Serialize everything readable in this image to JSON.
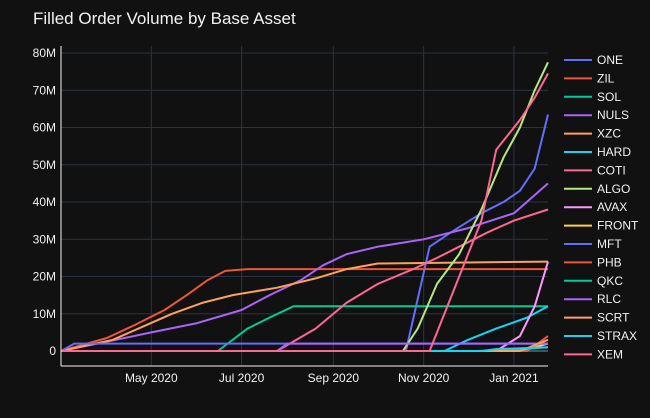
{
  "chart_data": {
    "type": "line",
    "title": "Filled Order Volume by Base Asset",
    "xlabel": "",
    "ylabel": "",
    "x_ticks": [
      "May 2020",
      "Jul 2020",
      "Sep 2020",
      "Nov 2020",
      "Jan 2021"
    ],
    "y_ticks": [
      "0",
      "10M",
      "20M",
      "30M",
      "40M",
      "50M",
      "60M",
      "70M",
      "80M"
    ],
    "xlim": [
      "2020-03-01",
      "2021-01-24"
    ],
    "ylim": [
      0,
      82000000
    ],
    "grid": true,
    "legend_position": "right",
    "series": [
      {
        "name": "ONE",
        "color": "#636efa",
        "points": [
          [
            "2020-03-01",
            0
          ],
          [
            "2020-10-20",
            0
          ],
          [
            "2020-11-05",
            28000000
          ],
          [
            "2020-11-20",
            32000000
          ],
          [
            "2020-12-10",
            37000000
          ],
          [
            "2020-12-25",
            40000000
          ],
          [
            "2021-01-05",
            43000000
          ],
          [
            "2021-01-15",
            49000000
          ],
          [
            "2021-01-24",
            63500000
          ]
        ]
      },
      {
        "name": "ZIL",
        "color": "#ef553b",
        "points": [
          [
            "2020-03-01",
            0
          ],
          [
            "2020-04-01",
            3500000
          ],
          [
            "2020-04-20",
            7000000
          ],
          [
            "2020-05-10",
            11000000
          ],
          [
            "2020-05-25",
            15000000
          ],
          [
            "2020-06-08",
            19000000
          ],
          [
            "2020-06-20",
            21500000
          ],
          [
            "2020-07-05",
            22000000
          ],
          [
            "2021-01-24",
            22000000
          ]
        ]
      },
      {
        "name": "SOL",
        "color": "#00cc96",
        "points": [
          [
            "2020-03-01",
            0
          ],
          [
            "2020-06-15",
            0
          ],
          [
            "2020-07-05",
            6000000
          ],
          [
            "2020-07-20",
            9000000
          ],
          [
            "2020-08-05",
            12000000
          ],
          [
            "2021-01-24",
            12000000
          ]
        ]
      },
      {
        "name": "NULS",
        "color": "#ab63fa",
        "points": [
          [
            "2020-03-01",
            0
          ],
          [
            "2020-04-01",
            2500000
          ],
          [
            "2020-05-01",
            5000000
          ],
          [
            "2020-06-01",
            7500000
          ],
          [
            "2020-07-01",
            11000000
          ],
          [
            "2020-07-20",
            15000000
          ],
          [
            "2020-08-10",
            19000000
          ],
          [
            "2020-08-25",
            23000000
          ],
          [
            "2020-09-10",
            26000000
          ],
          [
            "2020-10-01",
            28000000
          ],
          [
            "2020-11-01",
            30000000
          ],
          [
            "2020-12-01",
            33000000
          ],
          [
            "2021-01-01",
            37000000
          ],
          [
            "2021-01-24",
            45000000
          ]
        ]
      },
      {
        "name": "XZC",
        "color": "#ffa15a",
        "points": [
          [
            "2020-03-01",
            0
          ],
          [
            "2020-04-05",
            3000000
          ],
          [
            "2020-04-25",
            6500000
          ],
          [
            "2020-05-15",
            10000000
          ],
          [
            "2020-06-05",
            13000000
          ],
          [
            "2020-06-25",
            15000000
          ],
          [
            "2020-07-25",
            17000000
          ],
          [
            "2020-08-20",
            19500000
          ],
          [
            "2020-09-10",
            22000000
          ],
          [
            "2020-10-01",
            23500000
          ],
          [
            "2021-01-24",
            24000000
          ]
        ]
      },
      {
        "name": "HARD",
        "color": "#19d3f3",
        "points": [
          [
            "2020-03-01",
            0
          ],
          [
            "2020-11-15",
            0
          ],
          [
            "2020-12-01",
            3000000
          ],
          [
            "2020-12-20",
            6000000
          ],
          [
            "2021-01-10",
            9000000
          ],
          [
            "2021-01-24",
            12000000
          ]
        ]
      },
      {
        "name": "COTI",
        "color": "#ff6692",
        "points": [
          [
            "2020-03-01",
            0
          ],
          [
            "2020-07-25",
            0
          ],
          [
            "2020-08-20",
            6000000
          ],
          [
            "2020-09-10",
            13000000
          ],
          [
            "2020-10-01",
            18000000
          ],
          [
            "2020-10-25",
            22000000
          ],
          [
            "2020-11-10",
            25000000
          ],
          [
            "2020-11-25",
            28000000
          ],
          [
            "2020-12-15",
            32000000
          ],
          [
            "2021-01-01",
            35000000
          ],
          [
            "2021-01-24",
            38000000
          ]
        ]
      },
      {
        "name": "ALGO",
        "color": "#b6e880",
        "points": [
          [
            "2020-03-01",
            0
          ],
          [
            "2020-10-18",
            0
          ],
          [
            "2020-10-28",
            6000000
          ],
          [
            "2020-11-10",
            18000000
          ],
          [
            "2020-11-25",
            26000000
          ],
          [
            "2020-12-10",
            38000000
          ],
          [
            "2020-12-25",
            52000000
          ],
          [
            "2021-01-05",
            60000000
          ],
          [
            "2021-01-15",
            70000000
          ],
          [
            "2021-01-24",
            77500000
          ]
        ]
      },
      {
        "name": "AVAX",
        "color": "#ff97ff",
        "points": [
          [
            "2020-03-01",
            0
          ],
          [
            "2020-12-20",
            0
          ],
          [
            "2021-01-05",
            4000000
          ],
          [
            "2021-01-15",
            12000000
          ],
          [
            "2021-01-24",
            24000000
          ]
        ]
      },
      {
        "name": "FRONT",
        "color": "#fecb52",
        "points": [
          [
            "2020-03-01",
            0
          ],
          [
            "2021-01-05",
            0
          ],
          [
            "2021-01-24",
            2000000
          ]
        ]
      },
      {
        "name": "MFT",
        "color": "#636efa",
        "points": [
          [
            "2020-03-01",
            0
          ],
          [
            "2020-03-10",
            2000000
          ],
          [
            "2021-01-24",
            2000000
          ]
        ]
      },
      {
        "name": "PHB",
        "color": "#ef553b",
        "points": [
          [
            "2020-03-01",
            0
          ],
          [
            "2021-01-10",
            0
          ],
          [
            "2021-01-24",
            4000000
          ]
        ]
      },
      {
        "name": "QKC",
        "color": "#00cc96",
        "points": [
          [
            "2020-03-01",
            0
          ],
          [
            "2020-12-20",
            0
          ],
          [
            "2021-01-24",
            1000000
          ]
        ]
      },
      {
        "name": "RLC",
        "color": "#ab63fa",
        "points": [
          [
            "2020-03-01",
            0
          ],
          [
            "2020-07-25",
            0
          ],
          [
            "2020-08-01",
            2000000
          ],
          [
            "2021-01-24",
            2000000
          ]
        ]
      },
      {
        "name": "SCRT",
        "color": "#ffa15a",
        "points": [
          [
            "2020-03-01",
            0
          ],
          [
            "2021-01-05",
            0
          ],
          [
            "2021-01-24",
            3000000
          ]
        ]
      },
      {
        "name": "STRAX",
        "color": "#19d3f3",
        "points": [
          [
            "2020-03-01",
            0
          ],
          [
            "2020-12-10",
            0
          ],
          [
            "2020-12-20",
            500000
          ],
          [
            "2021-01-24",
            1000000
          ]
        ]
      },
      {
        "name": "XEM",
        "color": "#ff6692",
        "points": [
          [
            "2020-03-01",
            0
          ],
          [
            "2020-11-05",
            0
          ],
          [
            "2020-11-15",
            10000000
          ],
          [
            "2020-11-25",
            20000000
          ],
          [
            "2020-12-10",
            35000000
          ],
          [
            "2020-12-20",
            54000000
          ],
          [
            "2021-01-05",
            62000000
          ],
          [
            "2021-01-15",
            68000000
          ],
          [
            "2021-01-24",
            74500000
          ]
        ]
      }
    ]
  }
}
